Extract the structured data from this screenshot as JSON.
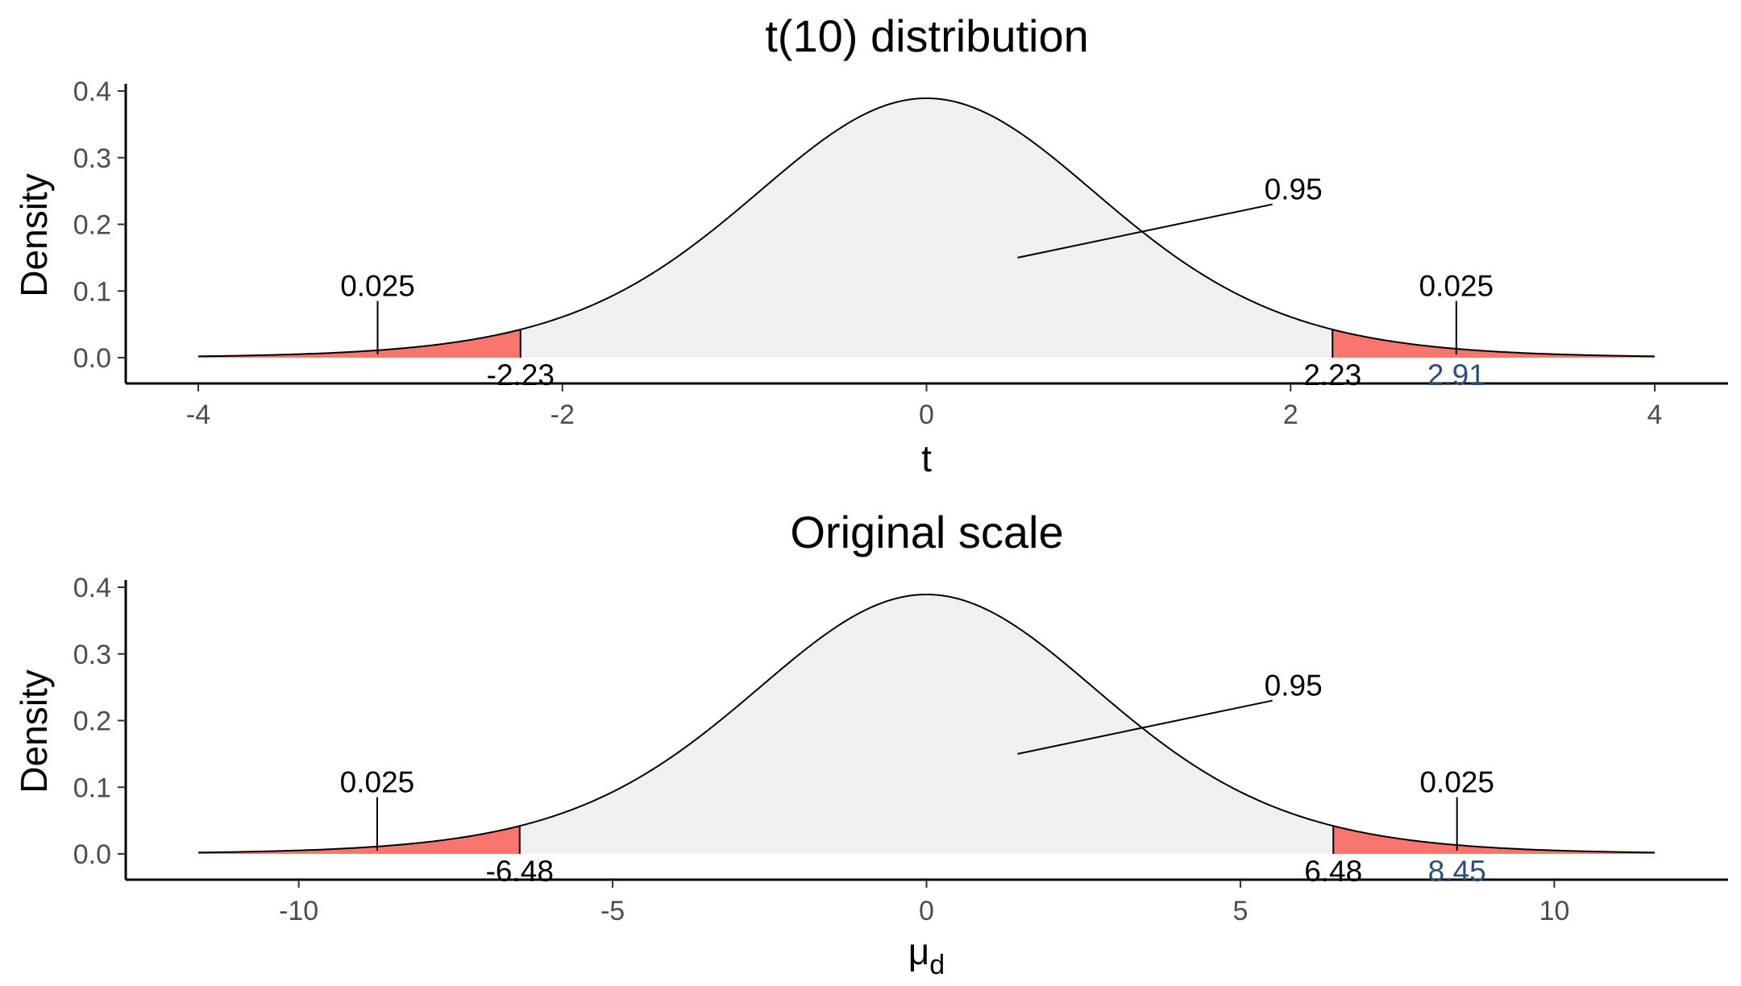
{
  "chart_data": [
    {
      "type": "area",
      "title": "t(10) distribution",
      "xlabel": "t",
      "ylabel": "Density",
      "distribution": "t",
      "df": 10,
      "scale": 1,
      "xlim": [
        -4,
        4
      ],
      "ylim": [
        0,
        0.4
      ],
      "xticks": [
        -4,
        -2,
        0,
        2,
        4
      ],
      "yticks": [
        0.0,
        0.1,
        0.2,
        0.3,
        0.4
      ],
      "xtick_labels": [
        "-4",
        "-2",
        "0",
        "2",
        "4"
      ],
      "ytick_labels": [
        "0.0",
        "0.1",
        "0.2",
        "0.3",
        "0.4"
      ],
      "critical_values": [
        -2.23,
        2.23
      ],
      "critical_labels": [
        "-2.23",
        "2.23"
      ],
      "observed_value": 2.91,
      "observed_label": "2.91",
      "regions": [
        {
          "label": "0.025",
          "from": -4,
          "to": -2.23,
          "color": "#f8766d"
        },
        {
          "label": "0.95",
          "from": -2.23,
          "to": 2.23,
          "color": "#f0f0f0"
        },
        {
          "label": "0.025",
          "from": 2.23,
          "to": 4,
          "color": "#f8766d"
        }
      ],
      "grid": false
    },
    {
      "type": "area",
      "title": "Original scale",
      "xlabel": "μ",
      "xlabel_sub": "d",
      "ylabel": "Density",
      "distribution": "t",
      "df": 10,
      "scale": 2.9,
      "xlim": [
        -11.6,
        11.6
      ],
      "ylim": [
        0,
        0.4
      ],
      "xticks": [
        -10,
        -5,
        0,
        5,
        10
      ],
      "yticks": [
        0.0,
        0.1,
        0.2,
        0.3,
        0.4
      ],
      "xtick_labels": [
        "-10",
        "-5",
        "0",
        "5",
        "10"
      ],
      "ytick_labels": [
        "0.0",
        "0.1",
        "0.2",
        "0.3",
        "0.4"
      ],
      "critical_values": [
        -6.48,
        6.48
      ],
      "critical_labels": [
        "-6.48",
        "6.48"
      ],
      "observed_value": 8.45,
      "observed_label": "8.45",
      "regions": [
        {
          "label": "0.025",
          "from": -11.6,
          "to": -6.48,
          "color": "#f8766d"
        },
        {
          "label": "0.95",
          "from": -6.48,
          "to": 6.48,
          "color": "#f0f0f0"
        },
        {
          "label": "0.025",
          "from": 6.48,
          "to": 11.6,
          "color": "#f8766d"
        }
      ],
      "grid": false
    }
  ],
  "colors": {
    "tail_fill": "#f8766d",
    "center_fill": "#f0f0f0",
    "observed_label": "#2c4f75",
    "curve": "#000000"
  }
}
